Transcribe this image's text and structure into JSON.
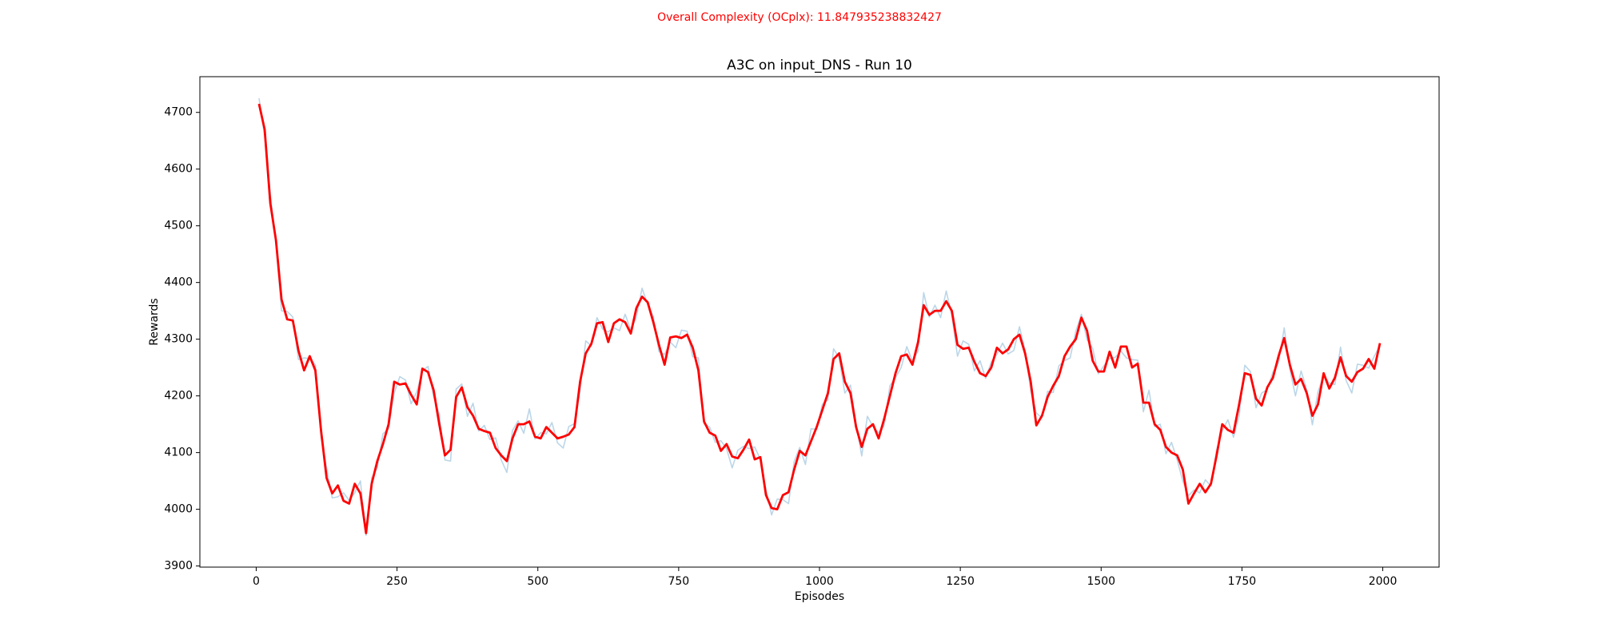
{
  "chart_data": {
    "type": "line",
    "suptitle": "Overall Complexity (OCplx): 11.847935238832427",
    "title": "A3C on input_DNS - Run 10",
    "xlabel": "Episodes",
    "ylabel": "Rewards",
    "xlim": [
      -100,
      2100
    ],
    "ylim": [
      3898,
      4763
    ],
    "xticks": [
      0,
      250,
      500,
      750,
      1000,
      1250,
      1500,
      1750,
      2000
    ],
    "yticks": [
      3900,
      4000,
      4100,
      4200,
      4300,
      4400,
      4500,
      4600,
      4700
    ],
    "x": [
      5,
      15,
      25,
      35,
      45,
      55,
      65,
      75,
      85,
      95,
      105,
      115,
      125,
      135,
      145,
      155,
      165,
      175,
      185,
      195,
      205,
      215,
      225,
      235,
      245,
      255,
      265,
      275,
      285,
      295,
      305,
      315,
      325,
      335,
      345,
      355,
      365,
      375,
      385,
      395,
      405,
      415,
      425,
      435,
      445,
      455,
      465,
      475,
      485,
      495,
      505,
      515,
      525,
      535,
      545,
      555,
      565,
      575,
      585,
      595,
      605,
      615,
      625,
      635,
      645,
      655,
      665,
      675,
      685,
      695,
      705,
      715,
      725,
      735,
      745,
      755,
      765,
      775,
      785,
      795,
      805,
      815,
      825,
      835,
      845,
      855,
      865,
      875,
      885,
      895,
      905,
      915,
      925,
      935,
      945,
      955,
      965,
      975,
      985,
      995,
      1005,
      1015,
      1025,
      1035,
      1045,
      1055,
      1065,
      1075,
      1085,
      1095,
      1105,
      1115,
      1125,
      1135,
      1145,
      1155,
      1165,
      1175,
      1185,
      1195,
      1205,
      1215,
      1225,
      1235,
      1245,
      1255,
      1265,
      1275,
      1285,
      1295,
      1305,
      1315,
      1325,
      1335,
      1345,
      1355,
      1365,
      1375,
      1385,
      1395,
      1405,
      1415,
      1425,
      1435,
      1445,
      1455,
      1465,
      1475,
      1485,
      1495,
      1505,
      1515,
      1525,
      1535,
      1545,
      1555,
      1565,
      1575,
      1585,
      1595,
      1605,
      1615,
      1625,
      1635,
      1645,
      1655,
      1665,
      1675,
      1685,
      1695,
      1705,
      1715,
      1725,
      1735,
      1745,
      1755,
      1765,
      1775,
      1785,
      1795,
      1805,
      1815,
      1825,
      1835,
      1845,
      1855,
      1865,
      1875,
      1885,
      1895,
      1905,
      1915,
      1925,
      1935,
      1945,
      1955,
      1965,
      1975,
      1985,
      1995
    ],
    "series": [
      {
        "color": "#1f77b4",
        "values": [
          4725,
          4658,
          4558,
          4467,
          4350,
          4349,
          4339,
          4264,
          4267,
          4266,
          4255,
          4128,
          4073,
          4020,
          4022,
          4029,
          4016,
          4029,
          4050,
          3954,
          4055,
          4073,
          4133,
          4142,
          4205,
          4234,
          4228,
          4186,
          4207,
          4244,
          4252,
          4198,
          4168,
          4087,
          4085,
          4212,
          4221,
          4164,
          4187,
          4138,
          4148,
          4123,
          4126,
          4087,
          4065,
          4139,
          4156,
          4134,
          4177,
          4124,
          4135,
          4133,
          4153,
          4117,
          4108,
          4146,
          4151,
          4209,
          4297,
          4288,
          4338,
          4318,
          4313,
          4320,
          4315,
          4344,
          4316,
          4339,
          4390,
          4361,
          4340,
          4278,
          4273,
          4295,
          4285,
          4316,
          4314,
          4269,
          4267,
          4151,
          4145,
          4118,
          4121,
          4107,
          4073,
          4104,
          4111,
          4107,
          4110,
          4088,
          4035,
          3990,
          4018,
          4017,
          4010,
          4084,
          4109,
          4079,
          4142,
          4141,
          4185,
          4193,
          4283,
          4267,
          4205,
          4219,
          4151,
          4094,
          4164,
          4146,
          4135,
          4148,
          4218,
          4232,
          4250,
          4287,
          4261,
          4279,
          4382,
          4339,
          4360,
          4338,
          4385,
          4342,
          4270,
          4297,
          4291,
          4244,
          4262,
          4231,
          4260,
          4273,
          4293,
          4274,
          4280,
          4322,
          4281,
          4209,
          4170,
          4161,
          4208,
          4206,
          4253,
          4262,
          4267,
          4314,
          4344,
          4299,
          4284,
          4239,
          4253,
          4266,
          4268,
          4279,
          4267,
          4264,
          4263,
          4172,
          4210,
          4146,
          4150,
          4098,
          4118,
          4087,
          4050,
          4024,
          4034,
          4029,
          4052,
          4041,
          4105,
          4138,
          4158,
          4127,
          4165,
          4254,
          4243,
          4179,
          4205,
          4211,
          4242,
          4258,
          4320,
          4247,
          4200,
          4244,
          4211,
          4149,
          4207,
          4236,
          4223,
          4220,
          4286,
          4227,
          4205,
          4256,
          4254,
          4249,
          4270,
          4289
        ]
      },
      {
        "color": "#ff0000",
        "values": [
          4715,
          4670,
          4540,
          4475,
          4370,
          4335,
          4333,
          4280,
          4245,
          4270,
          4245,
          4140,
          4055,
          4028,
          4042,
          4015,
          4010,
          4045,
          4028,
          3958,
          4045,
          4085,
          4115,
          4150,
          4225,
          4220,
          4222,
          4202,
          4185,
          4248,
          4242,
          4210,
          4150,
          4095,
          4105,
          4198,
          4215,
          4180,
          4165,
          4142,
          4138,
          4135,
          4108,
          4095,
          4085,
          4125,
          4150,
          4150,
          4155,
          4128,
          4125,
          4145,
          4135,
          4125,
          4128,
          4132,
          4145,
          4225,
          4275,
          4292,
          4328,
          4330,
          4295,
          4328,
          4335,
          4330,
          4310,
          4355,
          4375,
          4365,
          4330,
          4290,
          4255,
          4303,
          4305,
          4302,
          4308,
          4285,
          4245,
          4155,
          4135,
          4130,
          4103,
          4115,
          4093,
          4090,
          4105,
          4123,
          4088,
          4092,
          4025,
          4002,
          4000,
          4025,
          4030,
          4070,
          4103,
          4095,
          4120,
          4145,
          4175,
          4205,
          4265,
          4275,
          4225,
          4205,
          4145,
          4110,
          4142,
          4150,
          4125,
          4160,
          4200,
          4240,
          4270,
          4273,
          4255,
          4295,
          4360,
          4343,
          4350,
          4350,
          4367,
          4350,
          4290,
          4283,
          4285,
          4260,
          4240,
          4235,
          4250,
          4285,
          4275,
          4282,
          4300,
          4308,
          4275,
          4225,
          4148,
          4165,
          4198,
          4218,
          4235,
          4270,
          4287,
          4300,
          4338,
          4315,
          4262,
          4243,
          4243,
          4278,
          4250,
          4287,
          4287,
          4250,
          4257,
          4188,
          4188,
          4150,
          4140,
          4110,
          4100,
          4095,
          4070,
          4010,
          4028,
          4045,
          4030,
          4045,
          4095,
          4150,
          4140,
          4135,
          4185,
          4240,
          4237,
          4195,
          4183,
          4215,
          4232,
          4270,
          4302,
          4255,
          4220,
          4230,
          4205,
          4165,
          4185,
          4240,
          4213,
          4232,
          4268,
          4235,
          4225,
          4242,
          4248,
          4265,
          4248,
          4293
        ]
      }
    ]
  }
}
